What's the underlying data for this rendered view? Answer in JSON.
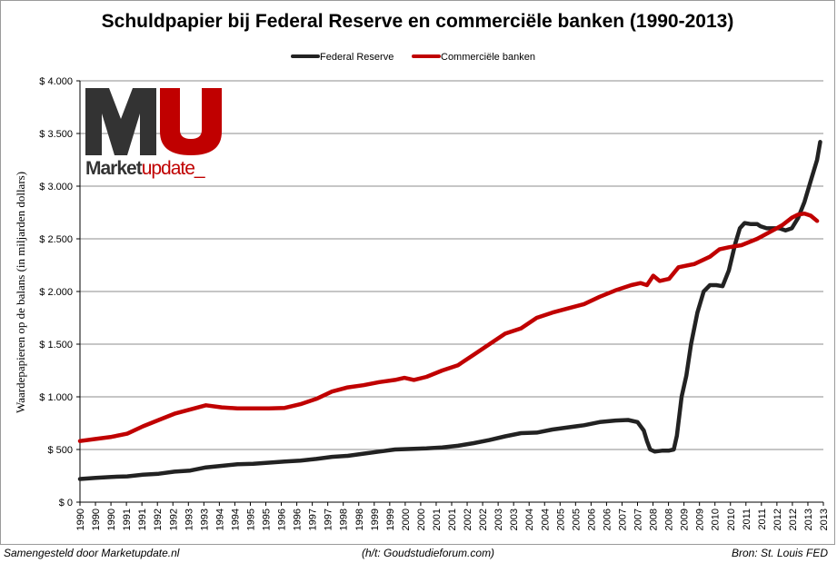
{
  "chart_data": {
    "type": "line",
    "title": "Schuldpapier bij Federal Reserve en commerciële banken (1990-2013)",
    "ylabel": "Waardepapieren op de balans (in miljarden dollars)",
    "xlabel": "",
    "ylim": [
      0,
      4000
    ],
    "yticks": [
      0,
      500,
      1000,
      1500,
      2000,
      2500,
      3000,
      3500,
      4000
    ],
    "ytick_labels": [
      "$ 0",
      "$ 500",
      "$ 1.000",
      "$ 1.500",
      "$ 2.000",
      "$ 2.500",
      "$ 3.000",
      "$ 3.500",
      "$ 4.000"
    ],
    "xlim": [
      1990.0,
      2013.6
    ],
    "xtick_labels": [
      "1990",
      "1990",
      "1990",
      "1991",
      "1991",
      "1992",
      "1992",
      "1993",
      "1993",
      "1994",
      "1994",
      "1995",
      "1995",
      "1996",
      "1996",
      "1997",
      "1997",
      "1998",
      "1998",
      "1999",
      "1999",
      "2000",
      "2000",
      "2001",
      "2001",
      "2002",
      "2002",
      "2003",
      "2003",
      "2004",
      "2004",
      "2005",
      "2005",
      "2006",
      "2006",
      "2007",
      "2007",
      "2008",
      "2008",
      "2009",
      "2009",
      "2010",
      "2010",
      "2011",
      "2011",
      "2012",
      "2012",
      "2013",
      "2013"
    ],
    "grid": true,
    "legend_position": "top",
    "series": [
      {
        "name": "Federal Reserve",
        "color": "#222222",
        "x": [
          1990.0,
          1990.5,
          1991.0,
          1991.5,
          1992.0,
          1992.5,
          1993.0,
          1993.5,
          1994.0,
          1994.5,
          1995.0,
          1995.5,
          1996.0,
          1996.5,
          1997.0,
          1997.5,
          1998.0,
          1998.5,
          1999.0,
          1999.5,
          2000.0,
          2000.5,
          2001.0,
          2001.5,
          2002.0,
          2002.5,
          2003.0,
          2003.5,
          2004.0,
          2004.5,
          2005.0,
          2005.5,
          2006.0,
          2006.5,
          2007.0,
          2007.4,
          2007.7,
          2007.9,
          2008.0,
          2008.1,
          2008.25,
          2008.5,
          2008.7,
          2008.85,
          2008.95,
          2009.1,
          2009.25,
          2009.4,
          2009.6,
          2009.8,
          2010.0,
          2010.2,
          2010.4,
          2010.6,
          2010.8,
          2010.95,
          2011.1,
          2011.3,
          2011.5,
          2011.6,
          2011.8,
          2012.0,
          2012.2,
          2012.4,
          2012.6,
          2012.8,
          2013.0,
          2013.2,
          2013.4,
          2013.5
        ],
        "y": [
          220,
          230,
          240,
          245,
          260,
          270,
          290,
          300,
          330,
          345,
          360,
          365,
          375,
          385,
          395,
          410,
          430,
          440,
          460,
          480,
          500,
          505,
          510,
          520,
          535,
          560,
          590,
          625,
          655,
          660,
          690,
          710,
          730,
          760,
          775,
          780,
          760,
          680,
          580,
          500,
          480,
          490,
          490,
          500,
          630,
          1000,
          1200,
          1500,
          1800,
          2000,
          2060,
          2060,
          2050,
          2200,
          2450,
          2600,
          2650,
          2640,
          2640,
          2620,
          2600,
          2600,
          2600,
          2580,
          2600,
          2700,
          2850,
          3050,
          3250,
          3420
        ]
      },
      {
        "name": "Commerciële banken",
        "color": "#c00000",
        "x": [
          1990.0,
          1990.5,
          1991.0,
          1991.5,
          1992.0,
          1992.5,
          1993.0,
          1993.5,
          1994.0,
          1994.5,
          1995.0,
          1995.5,
          1996.0,
          1996.5,
          1997.0,
          1997.5,
          1998.0,
          1998.5,
          1999.0,
          1999.5,
          2000.0,
          2000.3,
          2000.6,
          2001.0,
          2001.5,
          2002.0,
          2002.5,
          2003.0,
          2003.5,
          2004.0,
          2004.5,
          2005.0,
          2005.5,
          2006.0,
          2006.5,
          2007.0,
          2007.5,
          2007.8,
          2008.0,
          2008.2,
          2008.4,
          2008.7,
          2009.0,
          2009.5,
          2010.0,
          2010.3,
          2010.6,
          2011.0,
          2011.5,
          2012.0,
          2012.3,
          2012.6,
          2012.8,
          2013.0,
          2013.2,
          2013.4
        ],
        "y": [
          580,
          600,
          620,
          650,
          720,
          780,
          840,
          880,
          920,
          900,
          890,
          890,
          890,
          895,
          930,
          980,
          1050,
          1090,
          1110,
          1140,
          1160,
          1180,
          1160,
          1190,
          1250,
          1300,
          1400,
          1500,
          1600,
          1650,
          1750,
          1800,
          1840,
          1880,
          1950,
          2010,
          2060,
          2080,
          2060,
          2150,
          2100,
          2120,
          2230,
          2260,
          2330,
          2400,
          2420,
          2440,
          2500,
          2580,
          2630,
          2700,
          2730,
          2740,
          2720,
          2670
        ]
      }
    ]
  },
  "logo": {
    "letters": "MU",
    "word_main": "Market",
    "word_accent": "update_"
  },
  "footer": {
    "left": "Samengesteld door Marketupdate.nl",
    "center": "(h/t: Goudstudieforum.com)",
    "right": "Bron: St. Louis FED"
  }
}
